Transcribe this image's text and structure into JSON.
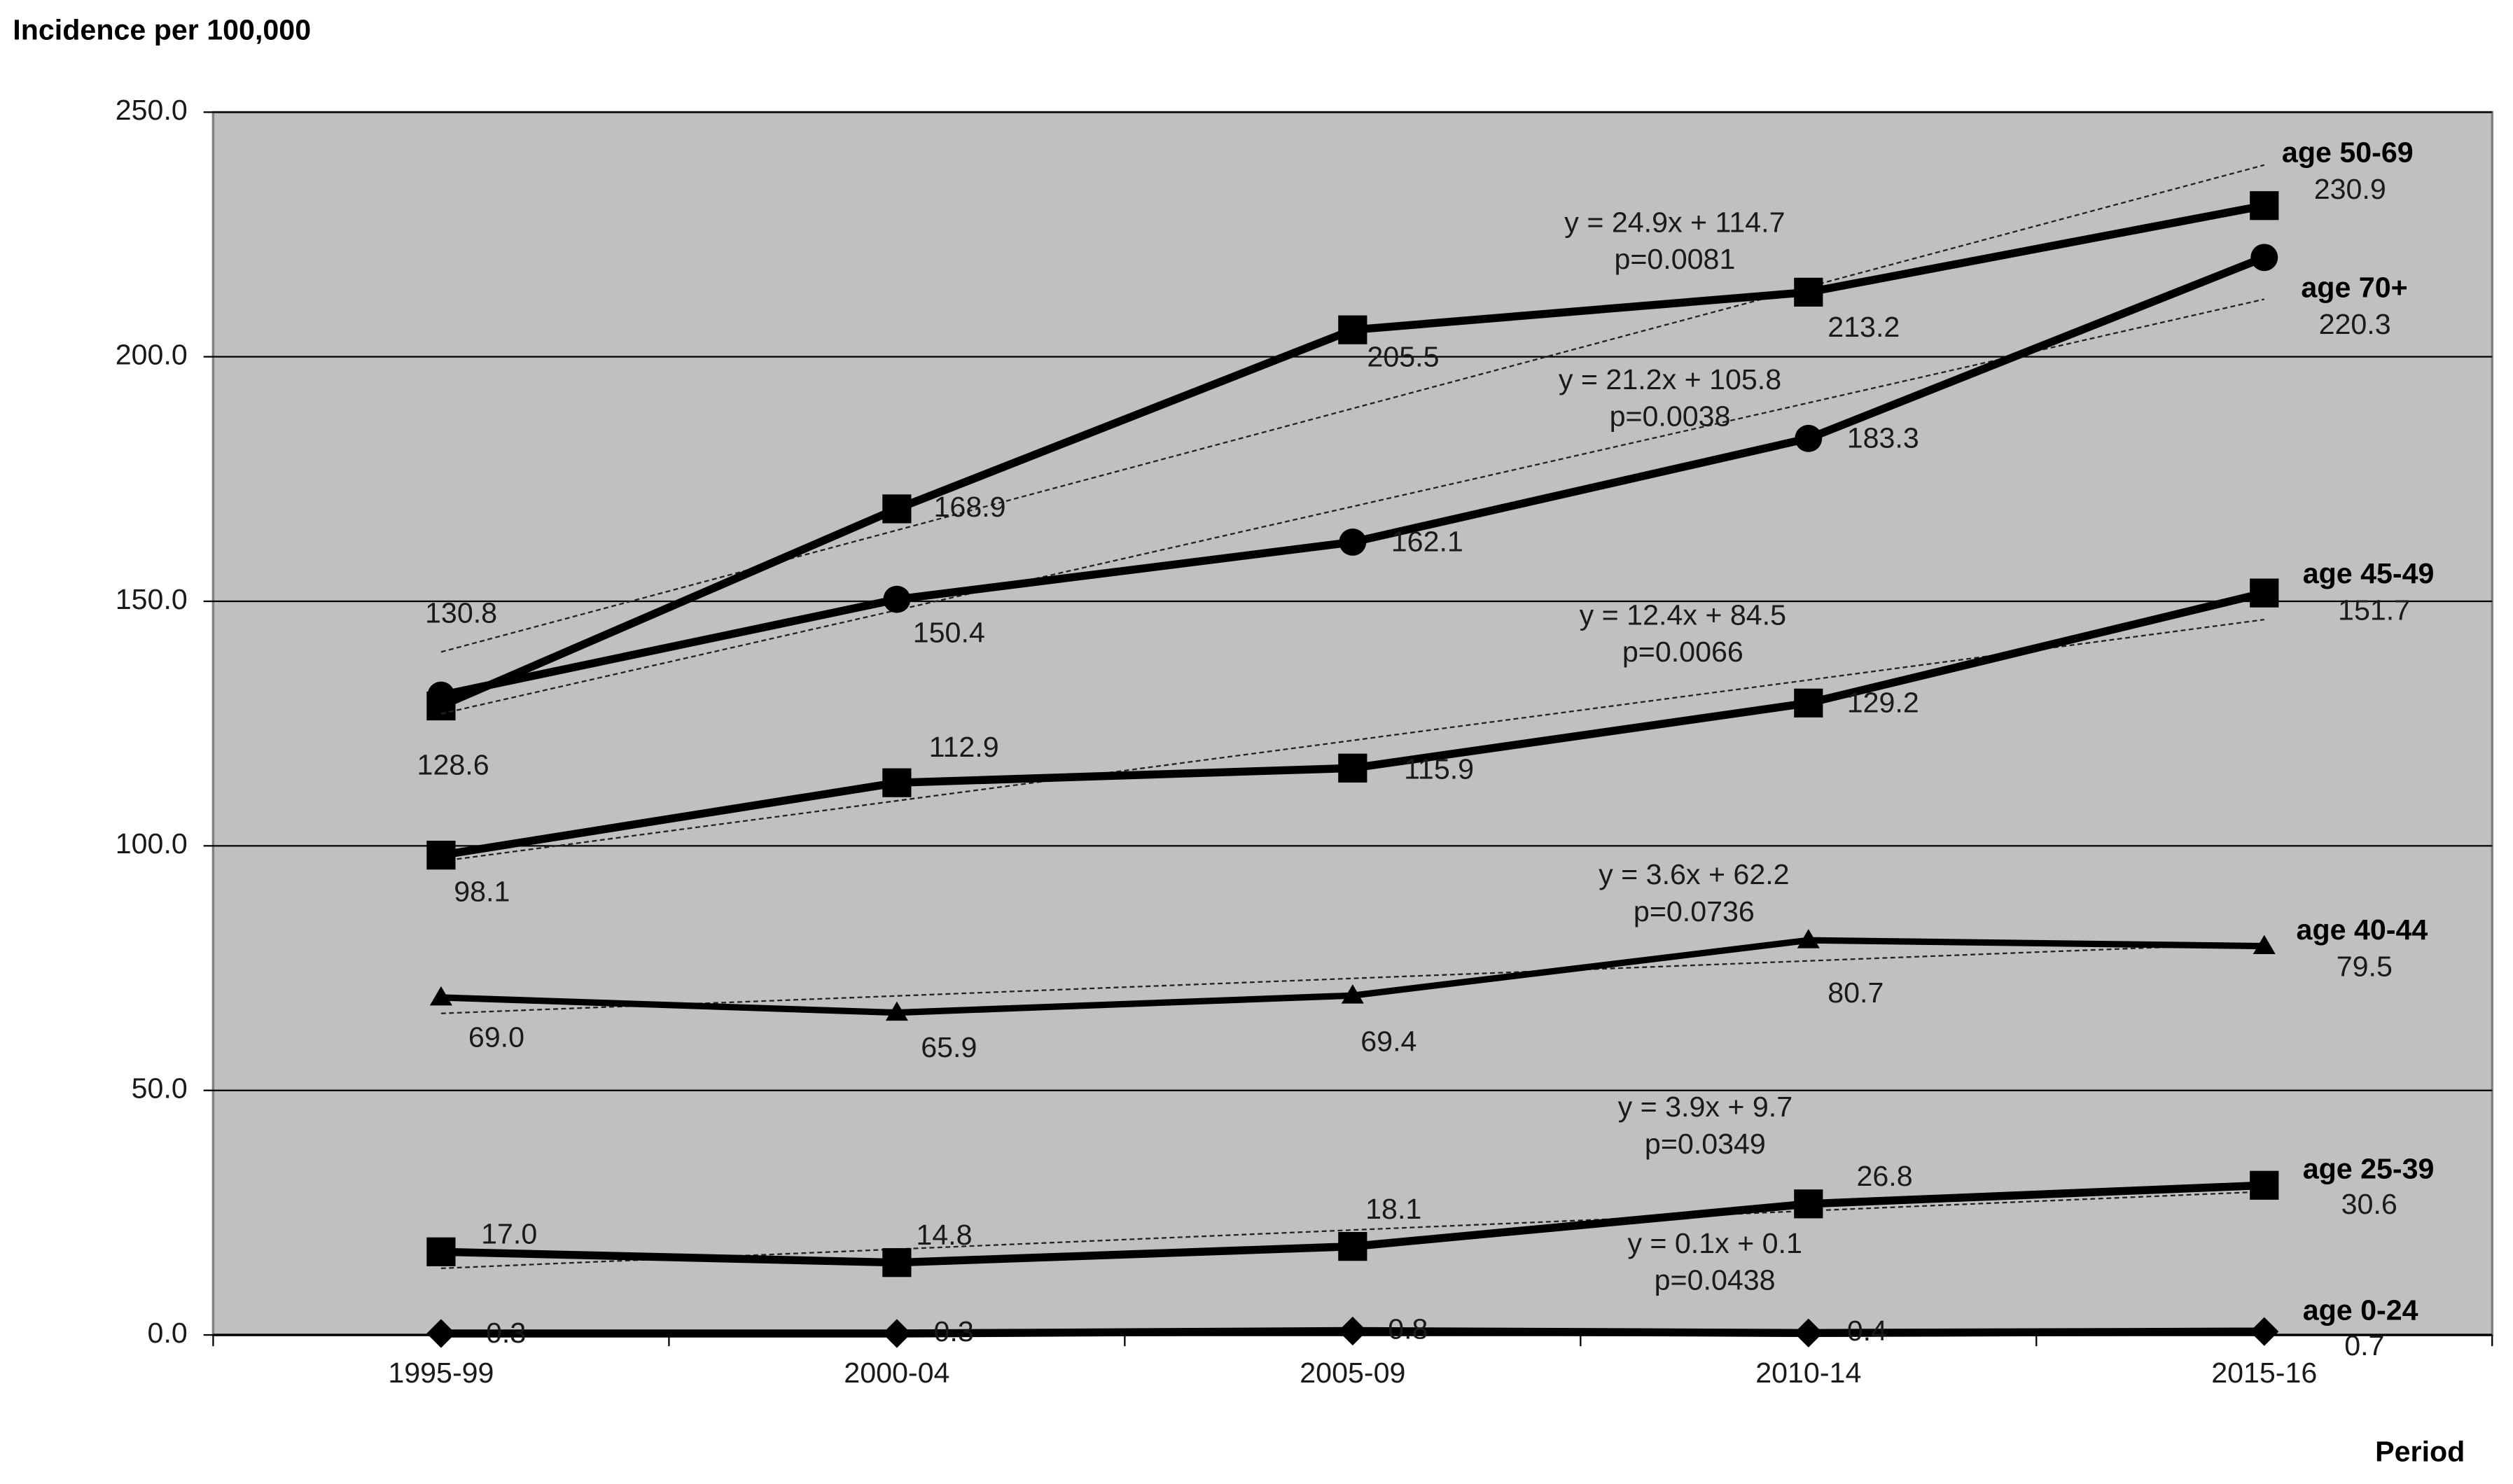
{
  "chart_data": {
    "type": "line",
    "y_axis_title": "Incidence per 100,000",
    "x_axis_title": "Period",
    "categories": [
      "1995-99",
      "2000-04",
      "2005-09",
      "2010-14",
      "2015-16"
    ],
    "ylim": [
      0,
      250
    ],
    "yticks": [
      {
        "value": 0,
        "label": "0.0"
      },
      {
        "value": 50,
        "label": "50.0"
      },
      {
        "value": 100,
        "label": "100.0"
      },
      {
        "value": 150,
        "label": "150.0"
      },
      {
        "value": 200,
        "label": "200.0"
      },
      {
        "value": 250,
        "label": "250.0"
      }
    ],
    "grid": true,
    "plot_background": "#c0c0c0",
    "series": [
      {
        "name": "age 50-69",
        "color": "#000000",
        "marker": "square",
        "values": [
          128.6,
          168.9,
          205.5,
          213.2,
          230.9
        ],
        "value_labels": [
          "128.6",
          "168.9",
          "205.5",
          "213.2",
          "230.9"
        ],
        "equation": "y = 24.9x + 114.7",
        "p_value": "p=0.0081"
      },
      {
        "name": "age 70+",
        "color": "#000000",
        "marker": "circle",
        "values": [
          130.8,
          150.4,
          162.1,
          183.3,
          220.3
        ],
        "value_labels": [
          "130.8",
          "150.4",
          "162.1",
          "183.3",
          "220.3"
        ],
        "equation": "y = 21.2x + 105.8",
        "p_value": "p=0.0038"
      },
      {
        "name": "age 45-49",
        "color": "#000000",
        "marker": "square",
        "values": [
          98.1,
          112.9,
          115.9,
          129.2,
          151.7
        ],
        "value_labels": [
          "98.1",
          "112.9",
          "115.9",
          "129.2",
          "151.7"
        ],
        "equation": "y = 12.4x + 84.5",
        "p_value": "p=0.0066"
      },
      {
        "name": "age 40-44",
        "color": "#000000",
        "marker": "triangle",
        "values": [
          69.0,
          65.9,
          69.4,
          80.7,
          79.5
        ],
        "value_labels": [
          "69.0",
          "65.9",
          "69.4",
          "80.7",
          "79.5"
        ],
        "equation": "y = 3.6x + 62.2",
        "p_value": "p=0.0736"
      },
      {
        "name": "age 25-39",
        "color": "#000000",
        "marker": "square",
        "values": [
          17.0,
          14.8,
          18.1,
          26.8,
          30.6
        ],
        "value_labels": [
          "17.0",
          "14.8",
          "18.1",
          "26.8",
          "30.6"
        ],
        "equation": "y = 3.9x + 9.7",
        "p_value": "p=0.0349"
      },
      {
        "name": "age 0-24",
        "color": "#000000",
        "marker": "diamond",
        "values": [
          0.3,
          0.3,
          0.8,
          0.4,
          0.7
        ],
        "value_labels": [
          "0.3",
          "0.3",
          "0.8",
          "0.4",
          "0.7"
        ],
        "equation": "y = 0.1x + 0.1",
        "p_value": "p=0.0438"
      }
    ]
  }
}
